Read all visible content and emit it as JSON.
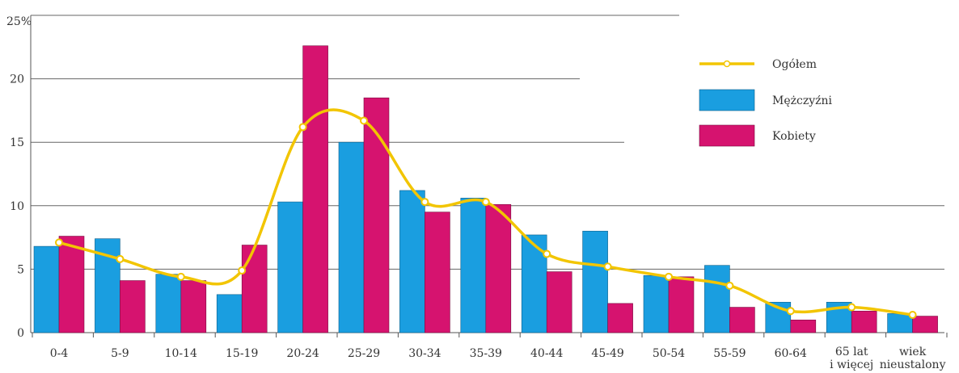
{
  "chart_data": {
    "type": "bar",
    "categories": [
      "0-4",
      "5-9",
      "10-14",
      "15-19",
      "20-24",
      "25-29",
      "30-34",
      "35-39",
      "40-44",
      "45-49",
      "50-54",
      "55-59",
      "60-64",
      "65 lat\ni więcej",
      "wiek\nnieustalony"
    ],
    "y_ticks": [
      "0",
      "5",
      "10",
      "15",
      "20",
      "25%"
    ],
    "ylim": [
      0,
      25
    ],
    "series": [
      {
        "name": "Mężczyźni",
        "kind": "bar",
        "color": "#1a9ee0",
        "values": [
          6.8,
          7.4,
          4.6,
          3.0,
          10.3,
          15.0,
          11.2,
          10.6,
          7.7,
          8.0,
          4.5,
          5.3,
          2.4,
          2.4,
          1.5
        ]
      },
      {
        "name": "Kobiety",
        "kind": "bar",
        "color": "#d6136f",
        "values": [
          7.6,
          4.1,
          4.1,
          6.9,
          22.6,
          18.5,
          9.5,
          10.1,
          4.8,
          2.3,
          4.4,
          2.0,
          1.0,
          1.7,
          1.3
        ]
      },
      {
        "name": "Ogółem",
        "kind": "line",
        "color": "#f2c500",
        "values": [
          7.1,
          5.8,
          4.4,
          4.9,
          16.2,
          16.7,
          10.3,
          10.3,
          6.2,
          5.2,
          4.4,
          3.7,
          1.7,
          2.0,
          1.4
        ]
      }
    ],
    "legend": [
      "Ogółem",
      "Mężczyźni",
      "Kobiety"
    ],
    "legend_position": "top-right",
    "grid": true
  }
}
